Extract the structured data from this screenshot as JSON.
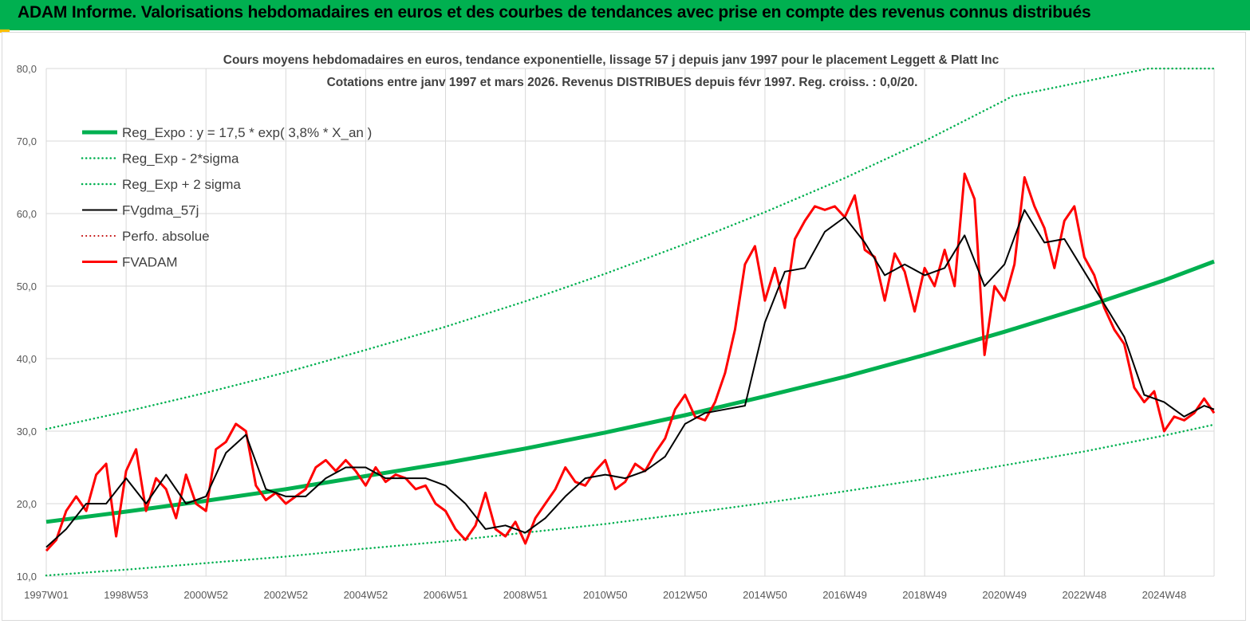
{
  "header": {
    "title": "ADAM Informe. Valorisations hebdomadaires en euros et des courbes de tendances avec prise en compte des revenus connus distribués",
    "background": "#00b050"
  },
  "chart_data": {
    "type": "line",
    "subtitle_line1": "Cours moyens hebdomadaires en euros, tendance exponentielle, lissage 57 j depuis janv 1997 pour le placement Leggett & Platt Inc",
    "subtitle_line2": "Cotations entre janv 1997 et mars 2026. Revenus DISTRIBUES depuis févr 1997. Reg. croiss. : 0,0/20.",
    "xlabel": "",
    "ylabel": "",
    "ylim": [
      10,
      80
    ],
    "yticks": [
      "10,0",
      "20,0",
      "30,0",
      "40,0",
      "50,0",
      "60,0",
      "70,0",
      "80,0"
    ],
    "xticks": [
      "1997W01",
      "1998W53",
      "2000W52",
      "2002W52",
      "2004W52",
      "2006W51",
      "2008W51",
      "2010W50",
      "2012W50",
      "2014W50",
      "2016W49",
      "2018W49",
      "2020W49",
      "2022W48",
      "2024W48"
    ],
    "xticks_years": [
      1997.0,
      1999.0,
      2001.0,
      2003.0,
      2005.0,
      2007.0,
      2009.0,
      2011.0,
      2013.0,
      2015.0,
      2017.0,
      2019.0,
      2021.0,
      2023.0,
      2025.0
    ],
    "xlim": [
      1997.0,
      2026.25
    ],
    "grid": true,
    "legend_position": "top-left",
    "regression": {
      "a": 17.5,
      "rate": 0.038,
      "sigma_factor": 1.73
    },
    "series": [
      {
        "name": "Reg_Expo : y = 17,5 * exp( 3,8% *  X_an )",
        "style": "solid",
        "color": "#00b050",
        "width": 5,
        "x": [
          1997.0,
          1999.0,
          2001.0,
          2003.0,
          2005.0,
          2007.0,
          2009.0,
          2011.0,
          2013.0,
          2015.0,
          2017.0,
          2019.0,
          2021.0,
          2023.0,
          2025.0,
          2026.25
        ],
        "values": [
          17.5,
          18.9,
          20.4,
          22.0,
          23.8,
          25.6,
          27.6,
          29.8,
          32.2,
          34.8,
          37.5,
          40.5,
          43.7,
          47.1,
          50.8,
          53.4
        ]
      },
      {
        "name": "Reg_Exp - 2*sigma",
        "style": "dotted",
        "color": "#00b050",
        "width": 2.5,
        "x": [
          1997.0,
          1999.0,
          2001.0,
          2003.0,
          2005.0,
          2007.0,
          2009.0,
          2011.0,
          2013.0,
          2015.0,
          2017.0,
          2019.0,
          2021.0,
          2023.0,
          2025.0,
          2026.25
        ],
        "values": [
          10.1,
          10.9,
          11.8,
          12.7,
          13.8,
          14.8,
          16.0,
          17.2,
          18.6,
          20.1,
          21.7,
          23.4,
          25.3,
          27.2,
          29.4,
          30.9
        ]
      },
      {
        "name": "Reg_Exp + 2 sigma",
        "style": "dotted",
        "color": "#00b050",
        "width": 2.5,
        "x": [
          1997.0,
          1999.0,
          2001.0,
          2003.0,
          2005.0,
          2007.0,
          2009.0,
          2011.0,
          2013.0,
          2015.0,
          2017.0,
          2019.0,
          2021.0,
          2021.2,
          2024.6,
          2026.25
        ],
        "values": [
          30.3,
          32.7,
          35.3,
          38.1,
          41.2,
          44.4,
          47.9,
          51.7,
          55.8,
          60.2,
          64.9,
          70.0,
          75.6,
          76.2,
          80.0,
          80.0
        ]
      },
      {
        "name": "FVgdma_57j",
        "style": "solid",
        "color": "#000000",
        "width": 2,
        "x": [
          1997.0,
          1997.5,
          1998.0,
          1998.5,
          1999.0,
          1999.5,
          2000.0,
          2000.5,
          2001.0,
          2001.5,
          2002.0,
          2002.5,
          2003.0,
          2003.5,
          2004.0,
          2004.5,
          2005.0,
          2005.5,
          2006.0,
          2006.5,
          2007.0,
          2007.5,
          2008.0,
          2008.5,
          2009.0,
          2009.5,
          2010.0,
          2010.5,
          2011.0,
          2011.5,
          2012.0,
          2012.5,
          2013.0,
          2013.5,
          2014.0,
          2014.5,
          2015.0,
          2015.5,
          2016.0,
          2016.5,
          2017.0,
          2017.5,
          2018.0,
          2018.5,
          2019.0,
          2019.5,
          2020.0,
          2020.5,
          2021.0,
          2021.5,
          2022.0,
          2022.5,
          2023.0,
          2023.5,
          2024.0,
          2024.5,
          2025.0,
          2025.5,
          2026.0,
          2026.25
        ],
        "values": [
          14.0,
          16.5,
          20.0,
          20.0,
          23.5,
          20.0,
          24.0,
          20.0,
          21.0,
          27.0,
          29.5,
          22.0,
          21.0,
          21.0,
          23.5,
          25.0,
          25.0,
          23.5,
          23.5,
          23.5,
          22.5,
          20.0,
          16.5,
          17.0,
          16.0,
          18.0,
          21.0,
          23.5,
          24.0,
          23.5,
          24.5,
          26.5,
          31.0,
          32.5,
          33.0,
          33.5,
          45.0,
          52.0,
          52.5,
          57.5,
          59.5,
          56.0,
          51.5,
          53.0,
          51.5,
          52.5,
          57.0,
          50.0,
          53.0,
          60.5,
          56.0,
          56.5,
          52.0,
          47.5,
          43.0,
          35.0,
          34.0,
          32.0,
          33.5,
          33.0
        ]
      },
      {
        "name": "Perfo. absolue",
        "style": "dotted",
        "color": "#c00000",
        "width": 2,
        "x": [],
        "values": []
      },
      {
        "name": "FVADAM",
        "style": "solid",
        "color": "#ff0000",
        "width": 3,
        "x": [
          1997.0,
          1997.25,
          1997.5,
          1997.75,
          1998.0,
          1998.25,
          1998.5,
          1998.75,
          1999.0,
          1999.25,
          1999.5,
          1999.75,
          2000.0,
          2000.25,
          2000.5,
          2000.75,
          2001.0,
          2001.25,
          2001.5,
          2001.75,
          2002.0,
          2002.25,
          2002.5,
          2002.75,
          2003.0,
          2003.25,
          2003.5,
          2003.75,
          2004.0,
          2004.25,
          2004.5,
          2004.75,
          2005.0,
          2005.25,
          2005.5,
          2005.75,
          2006.0,
          2006.25,
          2006.5,
          2006.75,
          2007.0,
          2007.25,
          2007.5,
          2007.75,
          2008.0,
          2008.25,
          2008.5,
          2008.75,
          2009.0,
          2009.25,
          2009.5,
          2009.75,
          2010.0,
          2010.25,
          2010.5,
          2010.75,
          2011.0,
          2011.25,
          2011.5,
          2011.75,
          2012.0,
          2012.25,
          2012.5,
          2012.75,
          2013.0,
          2013.25,
          2013.5,
          2013.75,
          2014.0,
          2014.25,
          2014.5,
          2014.75,
          2015.0,
          2015.25,
          2015.5,
          2015.75,
          2016.0,
          2016.25,
          2016.5,
          2016.75,
          2017.0,
          2017.25,
          2017.5,
          2017.75,
          2018.0,
          2018.25,
          2018.5,
          2018.75,
          2019.0,
          2019.25,
          2019.5,
          2019.75,
          2020.0,
          2020.25,
          2020.5,
          2020.75,
          2021.0,
          2021.25,
          2021.5,
          2021.75,
          2022.0,
          2022.25,
          2022.5,
          2022.75,
          2023.0,
          2023.25,
          2023.5,
          2023.75,
          2024.0,
          2024.25,
          2024.5,
          2024.75,
          2025.0,
          2025.25,
          2025.5,
          2025.75,
          2026.0,
          2026.25
        ],
        "values": [
          13.5,
          15.0,
          19.0,
          21.0,
          19.0,
          24.0,
          25.5,
          15.5,
          24.5,
          27.5,
          19.0,
          23.5,
          22.0,
          18.0,
          24.0,
          20.0,
          19.0,
          27.5,
          28.5,
          31.0,
          30.0,
          22.5,
          20.5,
          21.5,
          20.0,
          21.0,
          22.0,
          25.0,
          26.0,
          24.5,
          26.0,
          24.5,
          22.5,
          25.0,
          23.0,
          24.0,
          23.5,
          22.0,
          22.5,
          20.0,
          19.0,
          16.5,
          15.0,
          17.0,
          21.5,
          16.5,
          15.5,
          17.5,
          14.5,
          18.0,
          20.0,
          22.0,
          25.0,
          23.0,
          22.5,
          24.5,
          26.0,
          22.0,
          23.0,
          25.5,
          24.5,
          27.0,
          29.0,
          33.0,
          35.0,
          32.0,
          31.5,
          34.0,
          38.0,
          44.0,
          53.0,
          55.5,
          48.0,
          52.5,
          47.0,
          56.5,
          59.0,
          61.0,
          60.5,
          61.0,
          59.5,
          62.5,
          55.0,
          54.0,
          48.0,
          54.5,
          52.0,
          46.5,
          52.5,
          50.0,
          55.0,
          50.0,
          65.5,
          62.0,
          40.5,
          50.0,
          48.0,
          53.0,
          65.0,
          61.0,
          58.0,
          52.5,
          59.0,
          61.0,
          54.0,
          51.5,
          47.0,
          44.0,
          42.0,
          36.0,
          34.0,
          35.5,
          30.0,
          32.0,
          31.5,
          32.5,
          34.5,
          32.5
        ]
      }
    ]
  }
}
